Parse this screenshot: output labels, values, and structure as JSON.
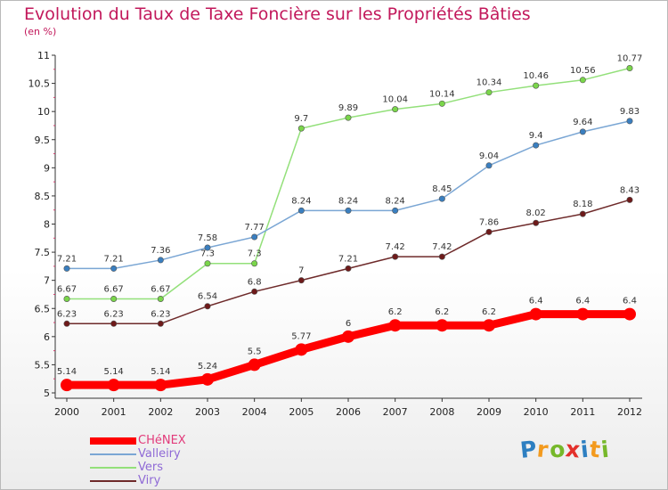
{
  "title": "Evolution du Taux de Taxe Foncière sur les Propriétés Bâties",
  "subtitle": "(en %)",
  "logo": {
    "text": "Proxiti",
    "letters": [
      "P",
      "r",
      "o",
      "x",
      "i",
      "t",
      "i"
    ],
    "colors": [
      "#2d7fc1",
      "#f39a1e",
      "#76b82a",
      "#e3302b",
      "#2d7fc1",
      "#f39a1e",
      "#76b82a"
    ]
  },
  "chart_data": {
    "type": "line",
    "title": "Evolution du Taux de Taxe Foncière sur les Propriétés Bâties",
    "ylabel": "(en %)",
    "xlabel": "",
    "ylim": [
      5,
      11
    ],
    "y_ticks": [
      "5",
      "5.5",
      "6",
      "6.5",
      "7",
      "7.5",
      "8",
      "8.5",
      "9",
      "9.5",
      "10",
      "10.5",
      "11"
    ],
    "y_tick_values": [
      5,
      5.5,
      6,
      6.5,
      7,
      7.5,
      8,
      8.5,
      9,
      9.5,
      10,
      10.5,
      11
    ],
    "x": [
      "2000",
      "2001",
      "2002",
      "2003",
      "2004",
      "2005",
      "2006",
      "2007",
      "2008",
      "2009",
      "2010",
      "2011",
      "2012"
    ],
    "grid": false,
    "legend_position": "bottom-left",
    "series": [
      {
        "name": "Viry",
        "color": "#6e2a2a",
        "marker_color": "#6e1a1a",
        "emphasis": false,
        "values": [
          6.23,
          6.23,
          6.23,
          6.54,
          6.8,
          7,
          7.21,
          7.42,
          7.42,
          7.86,
          8.02,
          8.18,
          8.43
        ],
        "labels": [
          "6.23",
          "6.23",
          "6.23",
          "6.54",
          "6.8",
          "7",
          "7.21",
          "7.42",
          "7.42",
          "7.86",
          "8.02",
          "8.18",
          "8.43"
        ]
      },
      {
        "name": "Vers",
        "color": "#93e07a",
        "marker_color": "#7ad64a",
        "emphasis": false,
        "values": [
          6.67,
          6.67,
          6.67,
          7.3,
          7.3,
          9.7,
          9.89,
          10.04,
          10.14,
          10.34,
          10.46,
          10.56,
          10.77
        ],
        "labels": [
          "6.67",
          "6.67",
          "6.67",
          "7.3",
          "7.3",
          "9.7",
          "9.89",
          "10.04",
          "10.14",
          "10.34",
          "10.46",
          "10.56",
          "10.77"
        ]
      },
      {
        "name": "Valleiry",
        "color": "#7aa6d4",
        "marker_color": "#3a7fc0",
        "emphasis": false,
        "values": [
          7.21,
          7.21,
          7.36,
          7.58,
          7.77,
          8.24,
          8.24,
          8.24,
          8.45,
          9.04,
          9.4,
          9.64,
          9.83
        ],
        "labels": [
          "7.21",
          "7.21",
          "7.36",
          "7.58",
          "7.77",
          "8.24",
          "8.24",
          "8.24",
          "8.45",
          "9.04",
          "9.4",
          "9.64",
          "9.83"
        ]
      },
      {
        "name": "CHéNEX",
        "color": "#ff0000",
        "marker_color": "#ff0000",
        "emphasis": true,
        "values": [
          5.14,
          5.14,
          5.14,
          5.24,
          5.5,
          5.77,
          6,
          6.2,
          6.2,
          6.2,
          6.4,
          6.4,
          6.4
        ],
        "labels": [
          "5.14",
          "5.14",
          "5.14",
          "5.24",
          "5.5",
          "5.77",
          "6",
          "6.2",
          "6.2",
          "6.2",
          "6.4",
          "6.4",
          "6.4"
        ]
      }
    ],
    "legend_order": [
      "CHéNEX",
      "Valleiry",
      "Vers",
      "Viry"
    ]
  }
}
